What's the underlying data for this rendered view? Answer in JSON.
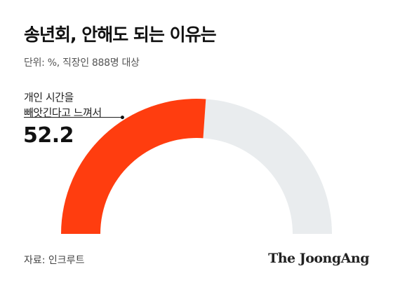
{
  "header": {
    "title": "송년회, 안해도 되는 이유는",
    "subtitle": "단위: %, 직장인 888명 대상"
  },
  "callout": {
    "label_line1": "개인 시간을",
    "label_line2": "빼앗긴다고 느껴서",
    "value": "52.2"
  },
  "footer": {
    "source": "자료: 인크루트",
    "logo": "The JoongAng"
  },
  "colors": {
    "highlight": "#ff3d0f",
    "remainder": "#e9ecee"
  },
  "chart_data": {
    "type": "gauge",
    "categories": [
      "개인 시간을 빼앗긴다고 느껴서"
    ],
    "values": [
      52.2
    ],
    "max": 100,
    "unit": "%"
  }
}
